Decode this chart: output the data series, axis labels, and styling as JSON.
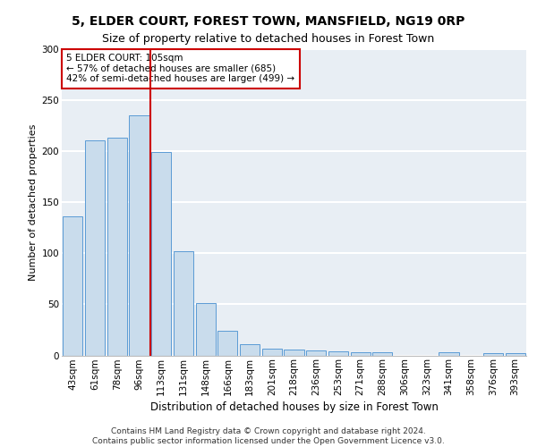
{
  "title1": "5, ELDER COURT, FOREST TOWN, MANSFIELD, NG19 0RP",
  "title2": "Size of property relative to detached houses in Forest Town",
  "xlabel": "Distribution of detached houses by size in Forest Town",
  "ylabel": "Number of detached properties",
  "categories": [
    "43sqm",
    "61sqm",
    "78sqm",
    "96sqm",
    "113sqm",
    "131sqm",
    "148sqm",
    "166sqm",
    "183sqm",
    "201sqm",
    "218sqm",
    "236sqm",
    "253sqm",
    "271sqm",
    "288sqm",
    "306sqm",
    "323sqm",
    "341sqm",
    "358sqm",
    "376sqm",
    "393sqm"
  ],
  "values": [
    136,
    211,
    213,
    235,
    199,
    102,
    51,
    24,
    11,
    7,
    6,
    5,
    4,
    3,
    3,
    0,
    0,
    3,
    0,
    2,
    2
  ],
  "bar_color": "#c9dcec",
  "bar_edge_color": "#5b9bd5",
  "vline_x": 3.5,
  "vline_color": "#cc0000",
  "annotation_line1": "5 ELDER COURT: 105sqm",
  "annotation_line2": "← 57% of detached houses are smaller (685)",
  "annotation_line3": "42% of semi-detached houses are larger (499) →",
  "annotation_box_edge": "#cc0000",
  "footer_text": "Contains HM Land Registry data © Crown copyright and database right 2024.\nContains public sector information licensed under the Open Government Licence v3.0.",
  "ylim": [
    0,
    300
  ],
  "yticks": [
    0,
    50,
    100,
    150,
    200,
    250,
    300
  ],
  "background_color": "#e8eef4",
  "grid_color": "#ffffff",
  "title1_fontsize": 10,
  "title2_fontsize": 9,
  "xlabel_fontsize": 8.5,
  "ylabel_fontsize": 8,
  "tick_fontsize": 7.5,
  "annotation_fontsize": 7.5,
  "footer_fontsize": 6.5
}
